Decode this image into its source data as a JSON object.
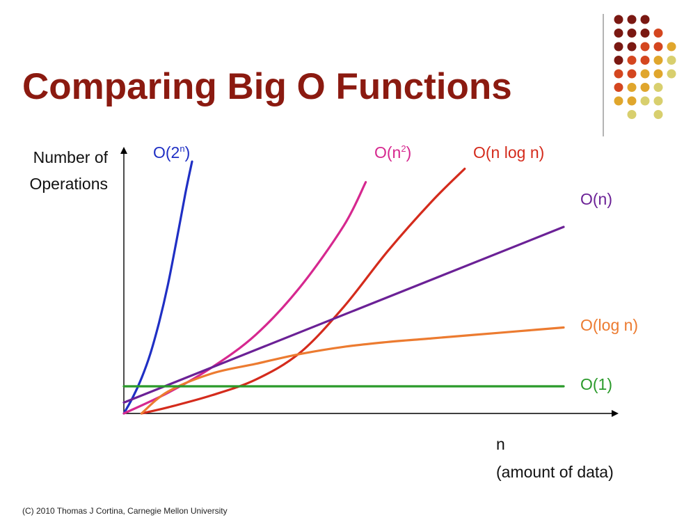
{
  "slide": {
    "title": "Comparing Big O Functions",
    "title_color": "#8b1a10",
    "footer": "(C) 2010 Thomas J Cortina, Carnegie Mellon University"
  },
  "decoration": {
    "dot_grid_rows": [
      [
        "#7a1812",
        "#7a1812",
        "#7a1812",
        null,
        null
      ],
      [
        "#7a1812",
        "#7a1812",
        "#7a1812",
        "#d4461f",
        null
      ],
      [
        "#7a1812",
        "#7a1812",
        "#d4461f",
        "#d4461f",
        "#e0a62c"
      ],
      [
        "#7a1812",
        "#d4461f",
        "#d4461f",
        "#e0a62c",
        "#d8cf6e"
      ],
      [
        "#d4461f",
        "#d4461f",
        "#e0a62c",
        "#e0a62c",
        "#d8cf6e"
      ],
      [
        "#d4461f",
        "#e0a62c",
        "#e0a62c",
        "#d8cf6e",
        null
      ],
      [
        "#e0a62c",
        "#e0a62c",
        "#d8cf6e",
        "#d8cf6e",
        null
      ],
      [
        null,
        "#d8cf6e",
        null,
        "#d8cf6e",
        null
      ]
    ]
  },
  "chart_data": {
    "type": "line",
    "title": "Comparing Big O Functions",
    "ylabel": [
      "Number of",
      "Operations"
    ],
    "xlabel": [
      "n",
      "(amount of data)"
    ],
    "xlim": [
      0,
      10
    ],
    "ylim": [
      0,
      10
    ],
    "grid": false,
    "ticks": false,
    "series": [
      {
        "name": "O(2n)",
        "label_base": "O(2",
        "label_sup": "n",
        "label_tail": ")",
        "color": "#1f2fc4",
        "x": [
          0,
          0.2,
          0.4,
          0.6,
          0.8,
          1.0,
          1.2,
          1.4,
          1.55
        ],
        "y": [
          0,
          0.65,
          1.45,
          2.45,
          3.75,
          5.3,
          7.15,
          9.1,
          10.4
        ]
      },
      {
        "name": "O(n2)",
        "label_base": "O(n",
        "label_sup": "2",
        "label_tail": ")",
        "color": "#d6288f",
        "x": [
          0,
          1,
          2,
          3,
          4,
          5,
          5.5
        ],
        "y": [
          0,
          0.85,
          1.9,
          3.25,
          5.2,
          7.75,
          9.55
        ]
      },
      {
        "name": "O(n log n)",
        "label_base": "O(n log n)",
        "label_sup": "",
        "label_tail": "",
        "color": "#d42b1c",
        "x": [
          0.4,
          1,
          2,
          3,
          4,
          5,
          6,
          7,
          7.75
        ],
        "y": [
          0,
          0.25,
          0.75,
          1.4,
          2.5,
          4.4,
          6.7,
          8.75,
          10.1
        ]
      },
      {
        "name": "O(n)",
        "label_base": "O(n)",
        "label_sup": "",
        "label_tail": "",
        "color": "#6b2196",
        "x": [
          0,
          10
        ],
        "y": [
          0.45,
          7.7
        ]
      },
      {
        "name": "O(log n)",
        "label_base": "O(log n)",
        "label_sup": "",
        "label_tail": "",
        "color": "#ec7b30",
        "x": [
          0.4,
          1,
          2,
          3,
          4,
          5,
          6,
          7,
          8,
          9,
          10
        ],
        "y": [
          0,
          0.9,
          1.65,
          2.05,
          2.45,
          2.75,
          2.95,
          3.1,
          3.25,
          3.4,
          3.55
        ]
      },
      {
        "name": "O(1)",
        "label_base": "O(1)",
        "label_sup": "",
        "label_tail": "",
        "color": "#2a9a2a",
        "x": [
          0,
          10
        ],
        "y": [
          1.12,
          1.12
        ]
      }
    ]
  }
}
